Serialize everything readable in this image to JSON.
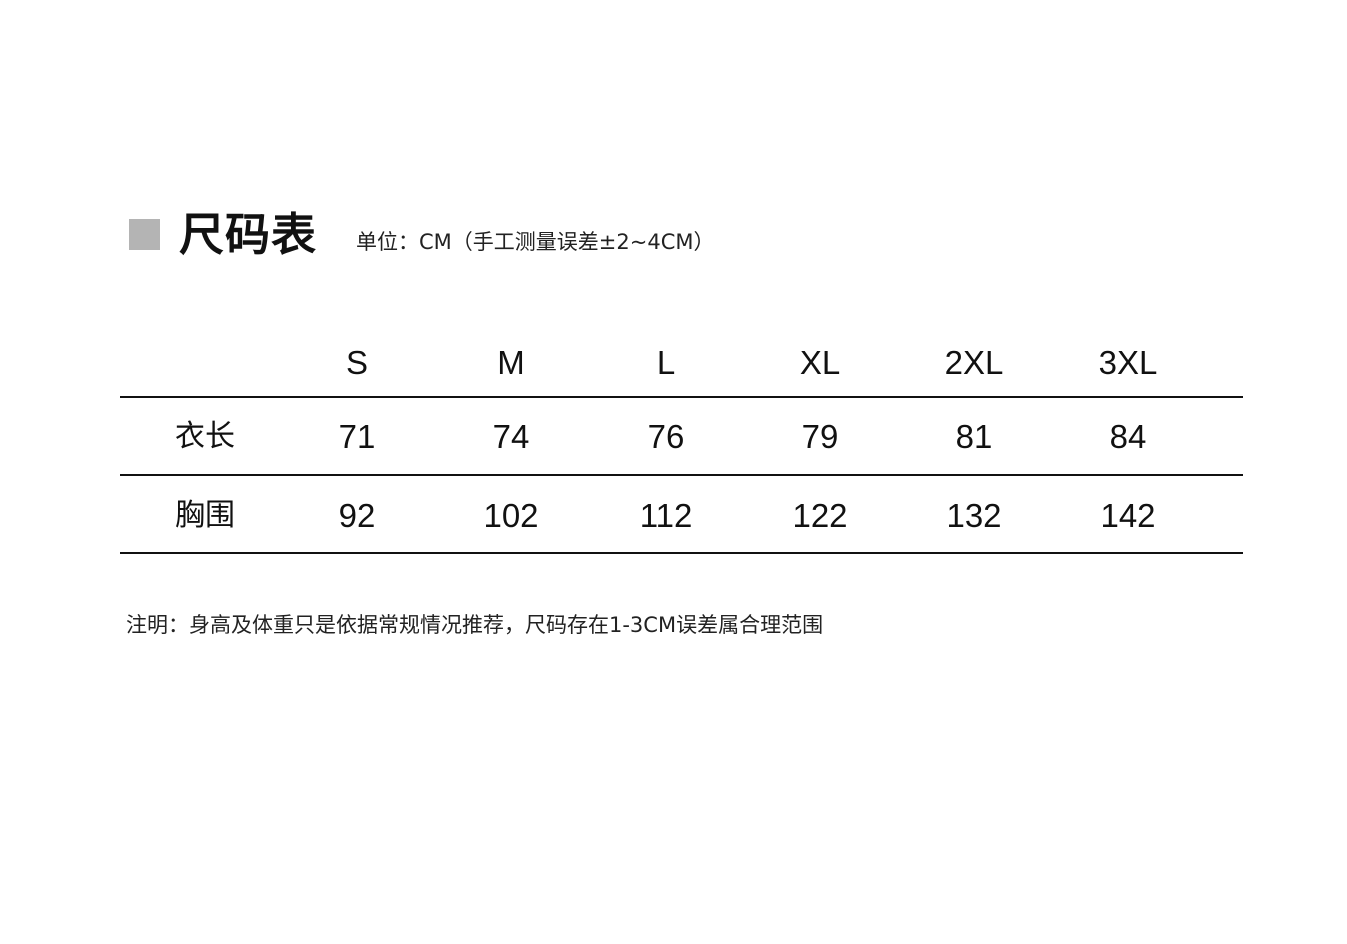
{
  "title": "尺码表",
  "subtitle": "单位：CM（手工测量误差±2~4CM）",
  "table": {
    "headers": [
      "",
      "S",
      "M",
      "L",
      "XL",
      "2XL",
      "3XL"
    ],
    "rows": [
      {
        "label": "衣长",
        "values": [
          "71",
          "74",
          "76",
          "79",
          "81",
          "84"
        ]
      },
      {
        "label": "胸围",
        "values": [
          "92",
          "102",
          "112",
          "122",
          "132",
          "142"
        ]
      }
    ]
  },
  "note": "注明：身高及体重只是依据常规情况推荐，尺码存在1-3CM误差属合理范围",
  "colors": {
    "accent_square": "#b4b4b4",
    "text": "#111111"
  }
}
